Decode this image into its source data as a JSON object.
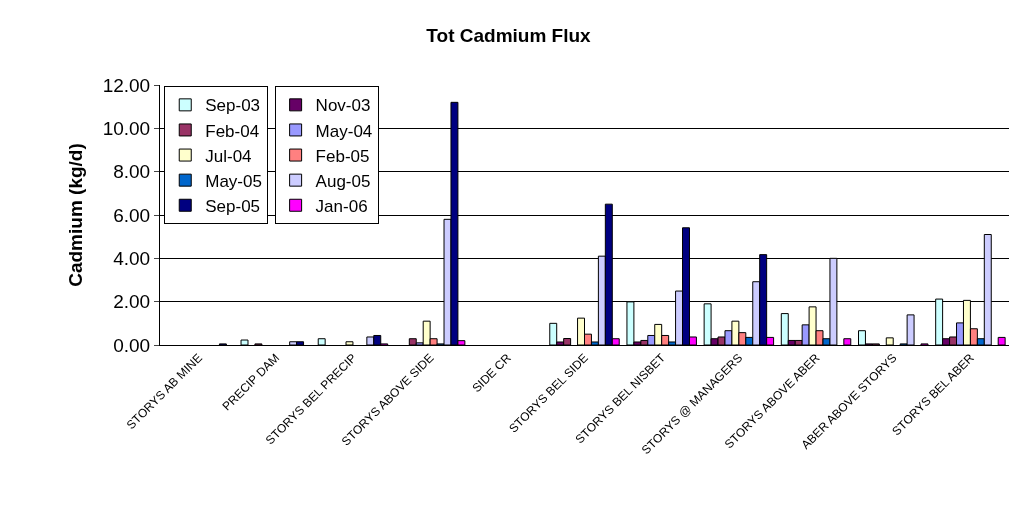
{
  "chart_data": {
    "type": "bar",
    "title": "Tot Cadmium Flux",
    "ylabel": "Cadmium (kg/d)",
    "categories": [
      "STORYS AB MINE",
      "PRECIP DAM",
      "STORYS BEL PRECIP",
      "STORYS ABOVE SIDE",
      "SIDE CR",
      "STORYS BEL SIDE",
      "STORYS BEL NISBET",
      "STORYS @ MANAGERS",
      "STORYS ABOVE ABER",
      "ABER ABOVE STORYS",
      "STORYS BEL ABER"
    ],
    "series": [
      {
        "name": "Sep-03",
        "color": "#ccffff",
        "values": [
          null,
          0.23,
          0.29,
          null,
          null,
          1.0,
          1.99,
          1.9,
          1.45,
          0.66,
          2.12
        ]
      },
      {
        "name": "Nov-03",
        "color": "#660066",
        "values": [
          null,
          null,
          null,
          null,
          null,
          0.14,
          0.14,
          0.29,
          0.21,
          0.05,
          0.29
        ]
      },
      {
        "name": "Feb-04",
        "color": "#993366",
        "values": [
          null,
          0.05,
          null,
          0.29,
          null,
          0.3,
          0.21,
          0.37,
          0.21,
          0.05,
          0.37
        ]
      },
      {
        "name": "May-04",
        "color": "#9999ff",
        "values": [
          null,
          null,
          null,
          0.1,
          null,
          null,
          0.44,
          0.66,
          0.93,
          null,
          1.02
        ]
      },
      {
        "name": "Jul-04",
        "color": "#ffffcc",
        "values": [
          null,
          null,
          0.15,
          1.1,
          null,
          1.24,
          0.95,
          1.1,
          1.76,
          0.33,
          2.06
        ]
      },
      {
        "name": "Feb-05",
        "color": "#ff8080",
        "values": [
          null,
          null,
          null,
          0.29,
          null,
          0.5,
          0.44,
          0.57,
          0.66,
          null,
          0.75
        ]
      },
      {
        "name": "May-05",
        "color": "#0066cc",
        "values": [
          null,
          null,
          null,
          0.05,
          null,
          0.14,
          0.14,
          0.35,
          0.29,
          0.05,
          0.29
        ]
      },
      {
        "name": "Aug-05",
        "color": "#ccccff",
        "values": [
          null,
          0.15,
          0.37,
          5.8,
          null,
          4.1,
          2.49,
          2.92,
          4.0,
          1.39,
          5.1
        ]
      },
      {
        "name": "Sep-05",
        "color": "#000080",
        "values": [
          0.05,
          0.15,
          0.44,
          11.2,
          null,
          6.5,
          5.41,
          4.17,
          null,
          null,
          null
        ]
      },
      {
        "name": "Jan-06",
        "color": "#ff00ff",
        "values": [
          null,
          null,
          0.05,
          0.2,
          null,
          0.29,
          0.37,
          0.35,
          0.29,
          0.05,
          0.35
        ]
      }
    ],
    "ylim": [
      0,
      12
    ],
    "yticks": [
      {
        "value": 0,
        "label": "0.00"
      },
      {
        "value": 2,
        "label": "2.00"
      },
      {
        "value": 4,
        "label": "4.00"
      },
      {
        "value": 6,
        "label": "6.00"
      },
      {
        "value": 8,
        "label": "8.00"
      },
      {
        "value": 10,
        "label": "10.00"
      },
      {
        "value": 12,
        "label": "12.00"
      }
    ],
    "grid": "y",
    "legend": "top left"
  }
}
